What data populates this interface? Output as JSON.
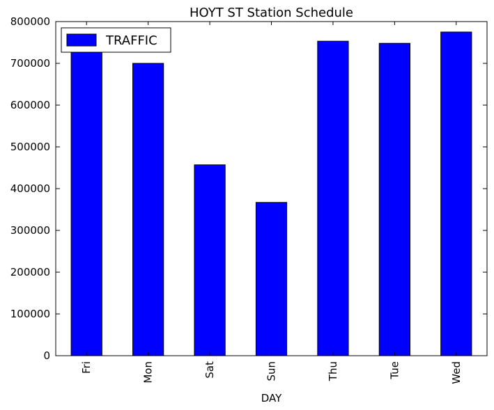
{
  "chart_data": {
    "type": "bar",
    "title": "HOYT ST Station Schedule",
    "xlabel": "DAY",
    "ylabel": "",
    "categories": [
      "Fri",
      "Mon",
      "Sat",
      "Sun",
      "Thu",
      "Tue",
      "Wed"
    ],
    "series": [
      {
        "name": "TRAFFIC",
        "color": "#0000ff",
        "values": [
          728000,
          700000,
          457000,
          367000,
          753000,
          748000,
          775000
        ]
      }
    ],
    "ylim": [
      0,
      800000
    ],
    "yticks": [
      0,
      100000,
      200000,
      300000,
      400000,
      500000,
      600000,
      700000,
      800000
    ],
    "legend_position": "top-left",
    "grid": false
  }
}
